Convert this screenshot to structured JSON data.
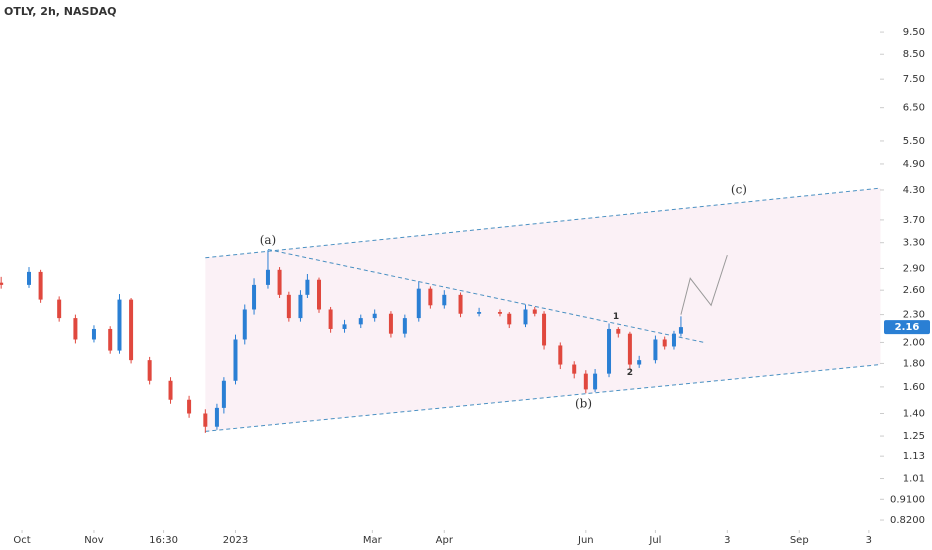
{
  "chart_data": {
    "type": "candlestick",
    "title": "OTLY, 2h, NASDAQ",
    "log_scale": true,
    "grid": false,
    "up_color": "#2a7fd4",
    "down_color": "#e0483e",
    "x": [
      -9,
      3,
      8,
      16,
      23,
      31,
      38,
      42,
      47,
      55,
      64,
      72,
      79,
      84,
      87,
      92,
      96,
      100,
      106,
      111,
      115,
      120,
      123,
      128,
      133,
      139,
      146,
      152,
      159,
      165,
      171,
      176,
      182,
      189,
      197,
      206,
      210,
      217,
      221,
      225,
      232,
      238,
      243,
      247,
      253,
      257,
      262,
      266,
      273,
      277,
      281,
      284
    ],
    "open": [
      2.7,
      2.67,
      2.85,
      2.48,
      2.26,
      2.03,
      2.14,
      1.92,
      2.48,
      1.83,
      1.65,
      1.5,
      1.4,
      1.31,
      1.44,
      1.65,
      2.03,
      2.36,
      2.67,
      2.88,
      2.54,
      2.26,
      2.54,
      2.74,
      2.36,
      2.14,
      2.19,
      2.26,
      2.31,
      2.09,
      2.26,
      2.62,
      2.41,
      2.54,
      2.31,
      2.33,
      2.31,
      2.19,
      2.36,
      2.31,
      1.97,
      1.79,
      1.71,
      1.58,
      1.71,
      2.14,
      2.09,
      1.79,
      1.83,
      2.03,
      1.96,
      2.09
    ],
    "high": [
      2.78,
      2.92,
      2.88,
      2.52,
      2.3,
      2.18,
      2.17,
      2.55,
      2.5,
      1.86,
      1.68,
      1.53,
      1.43,
      1.47,
      1.68,
      2.08,
      2.42,
      2.76,
      3.18,
      2.92,
      2.58,
      2.6,
      2.82,
      2.77,
      2.39,
      2.24,
      2.3,
      2.36,
      2.34,
      2.3,
      2.72,
      2.65,
      2.6,
      2.57,
      2.38,
      2.36,
      2.33,
      2.42,
      2.39,
      2.34,
      2.0,
      1.82,
      1.74,
      1.75,
      2.2,
      2.16,
      2.11,
      1.87,
      2.07,
      2.06,
      2.12,
      2.28
    ],
    "low": [
      2.62,
      2.63,
      2.44,
      2.22,
      1.99,
      2.0,
      1.89,
      1.89,
      1.8,
      1.62,
      1.47,
      1.37,
      1.27,
      1.29,
      1.4,
      1.62,
      1.98,
      2.3,
      2.62,
      2.5,
      2.22,
      2.22,
      2.5,
      2.32,
      2.1,
      2.1,
      2.15,
      2.22,
      2.05,
      2.05,
      2.22,
      2.37,
      2.37,
      2.27,
      2.28,
      2.28,
      2.15,
      2.16,
      2.28,
      1.93,
      1.75,
      1.67,
      1.55,
      1.56,
      1.68,
      2.05,
      1.75,
      1.76,
      1.8,
      1.93,
      1.93,
      2.06
    ],
    "close": [
      2.67,
      2.85,
      2.48,
      2.26,
      2.03,
      2.14,
      1.92,
      2.48,
      1.83,
      1.65,
      1.5,
      1.4,
      1.31,
      1.44,
      1.65,
      2.03,
      2.36,
      2.67,
      2.88,
      2.54,
      2.26,
      2.54,
      2.74,
      2.36,
      2.14,
      2.19,
      2.26,
      2.31,
      2.09,
      2.26,
      2.62,
      2.41,
      2.54,
      2.31,
      2.33,
      2.31,
      2.19,
      2.36,
      2.31,
      1.97,
      1.79,
      1.71,
      1.58,
      1.71,
      2.14,
      2.09,
      1.79,
      1.83,
      2.03,
      1.96,
      2.09,
      2.16
    ],
    "xlim": [
      -9.5,
      369.8
    ],
    "ylim": [
      0.78,
      11.16
    ],
    "xticks": [
      {
        "value": 0,
        "label": "Oct"
      },
      {
        "value": 31,
        "label": "Nov"
      },
      {
        "value": 61,
        "label": "16:30"
      },
      {
        "value": 92,
        "label": "2023"
      },
      {
        "value": 151,
        "label": "Mar"
      },
      {
        "value": 182,
        "label": "Apr"
      },
      {
        "value": 243,
        "label": "Jun"
      },
      {
        "value": 273,
        "label": "Jul"
      },
      {
        "value": 304,
        "label": "3"
      },
      {
        "value": 335,
        "label": "Sep"
      },
      {
        "value": 365,
        "label": "3"
      }
    ],
    "yticks": [
      {
        "value": 9.5,
        "label": "9.50"
      },
      {
        "value": 8.5,
        "label": "8.50"
      },
      {
        "value": 7.5,
        "label": "7.50"
      },
      {
        "value": 6.5,
        "label": "6.50"
      },
      {
        "value": 5.5,
        "label": "5.50"
      },
      {
        "value": 4.9,
        "label": "4.90"
      },
      {
        "value": 4.3,
        "label": "4.30"
      },
      {
        "value": 3.7,
        "label": "3.70"
      },
      {
        "value": 3.3,
        "label": "3.30"
      },
      {
        "value": 2.9,
        "label": "2.90"
      },
      {
        "value": 2.6,
        "label": "2.60"
      },
      {
        "value": 2.3,
        "label": "2.30"
      },
      {
        "value": 2.0,
        "label": "2.00"
      },
      {
        "value": 1.8,
        "label": "1.80"
      },
      {
        "value": 1.6,
        "label": "1.60"
      },
      {
        "value": 1.4,
        "label": "1.40"
      },
      {
        "value": 1.25,
        "label": "1.25"
      },
      {
        "value": 1.13,
        "label": "1.13"
      },
      {
        "value": 1.01,
        "label": "1.01"
      },
      {
        "value": 0.91,
        "label": "0.9100"
      },
      {
        "value": 0.82,
        "label": "0.8200"
      }
    ],
    "channel_fill": "#fbf1f6",
    "lines": [
      {
        "x": [
          79,
          370
        ],
        "y": [
          3.06,
          4.34
        ],
        "color": "#4a90c2",
        "dash": true
      },
      {
        "x": [
          79,
          370
        ],
        "y": [
          1.28,
          1.79
        ],
        "color": "#4a90c2",
        "dash": true
      },
      {
        "x": [
          106,
          294
        ],
        "y": [
          3.19,
          2.0
        ],
        "color": "#4a90c2",
        "dash": true
      },
      {
        "x": [
          284,
          288,
          297,
          304
        ],
        "y": [
          2.3,
          2.76,
          2.41,
          3.1
        ],
        "color": "#9a9a9a",
        "dash": false
      }
    ],
    "annotations": [
      {
        "text": "(a)",
        "x": 106,
        "y": 3.34
      },
      {
        "text": "(b)",
        "x": 242,
        "y": 1.47
      },
      {
        "text": "(c)",
        "x": 309,
        "y": 4.3
      },
      {
        "text": "1",
        "x": 256,
        "y": 2.28
      },
      {
        "text": "2",
        "x": 262,
        "y": 1.72
      }
    ],
    "price_label_color": "#2a7fd4"
  }
}
